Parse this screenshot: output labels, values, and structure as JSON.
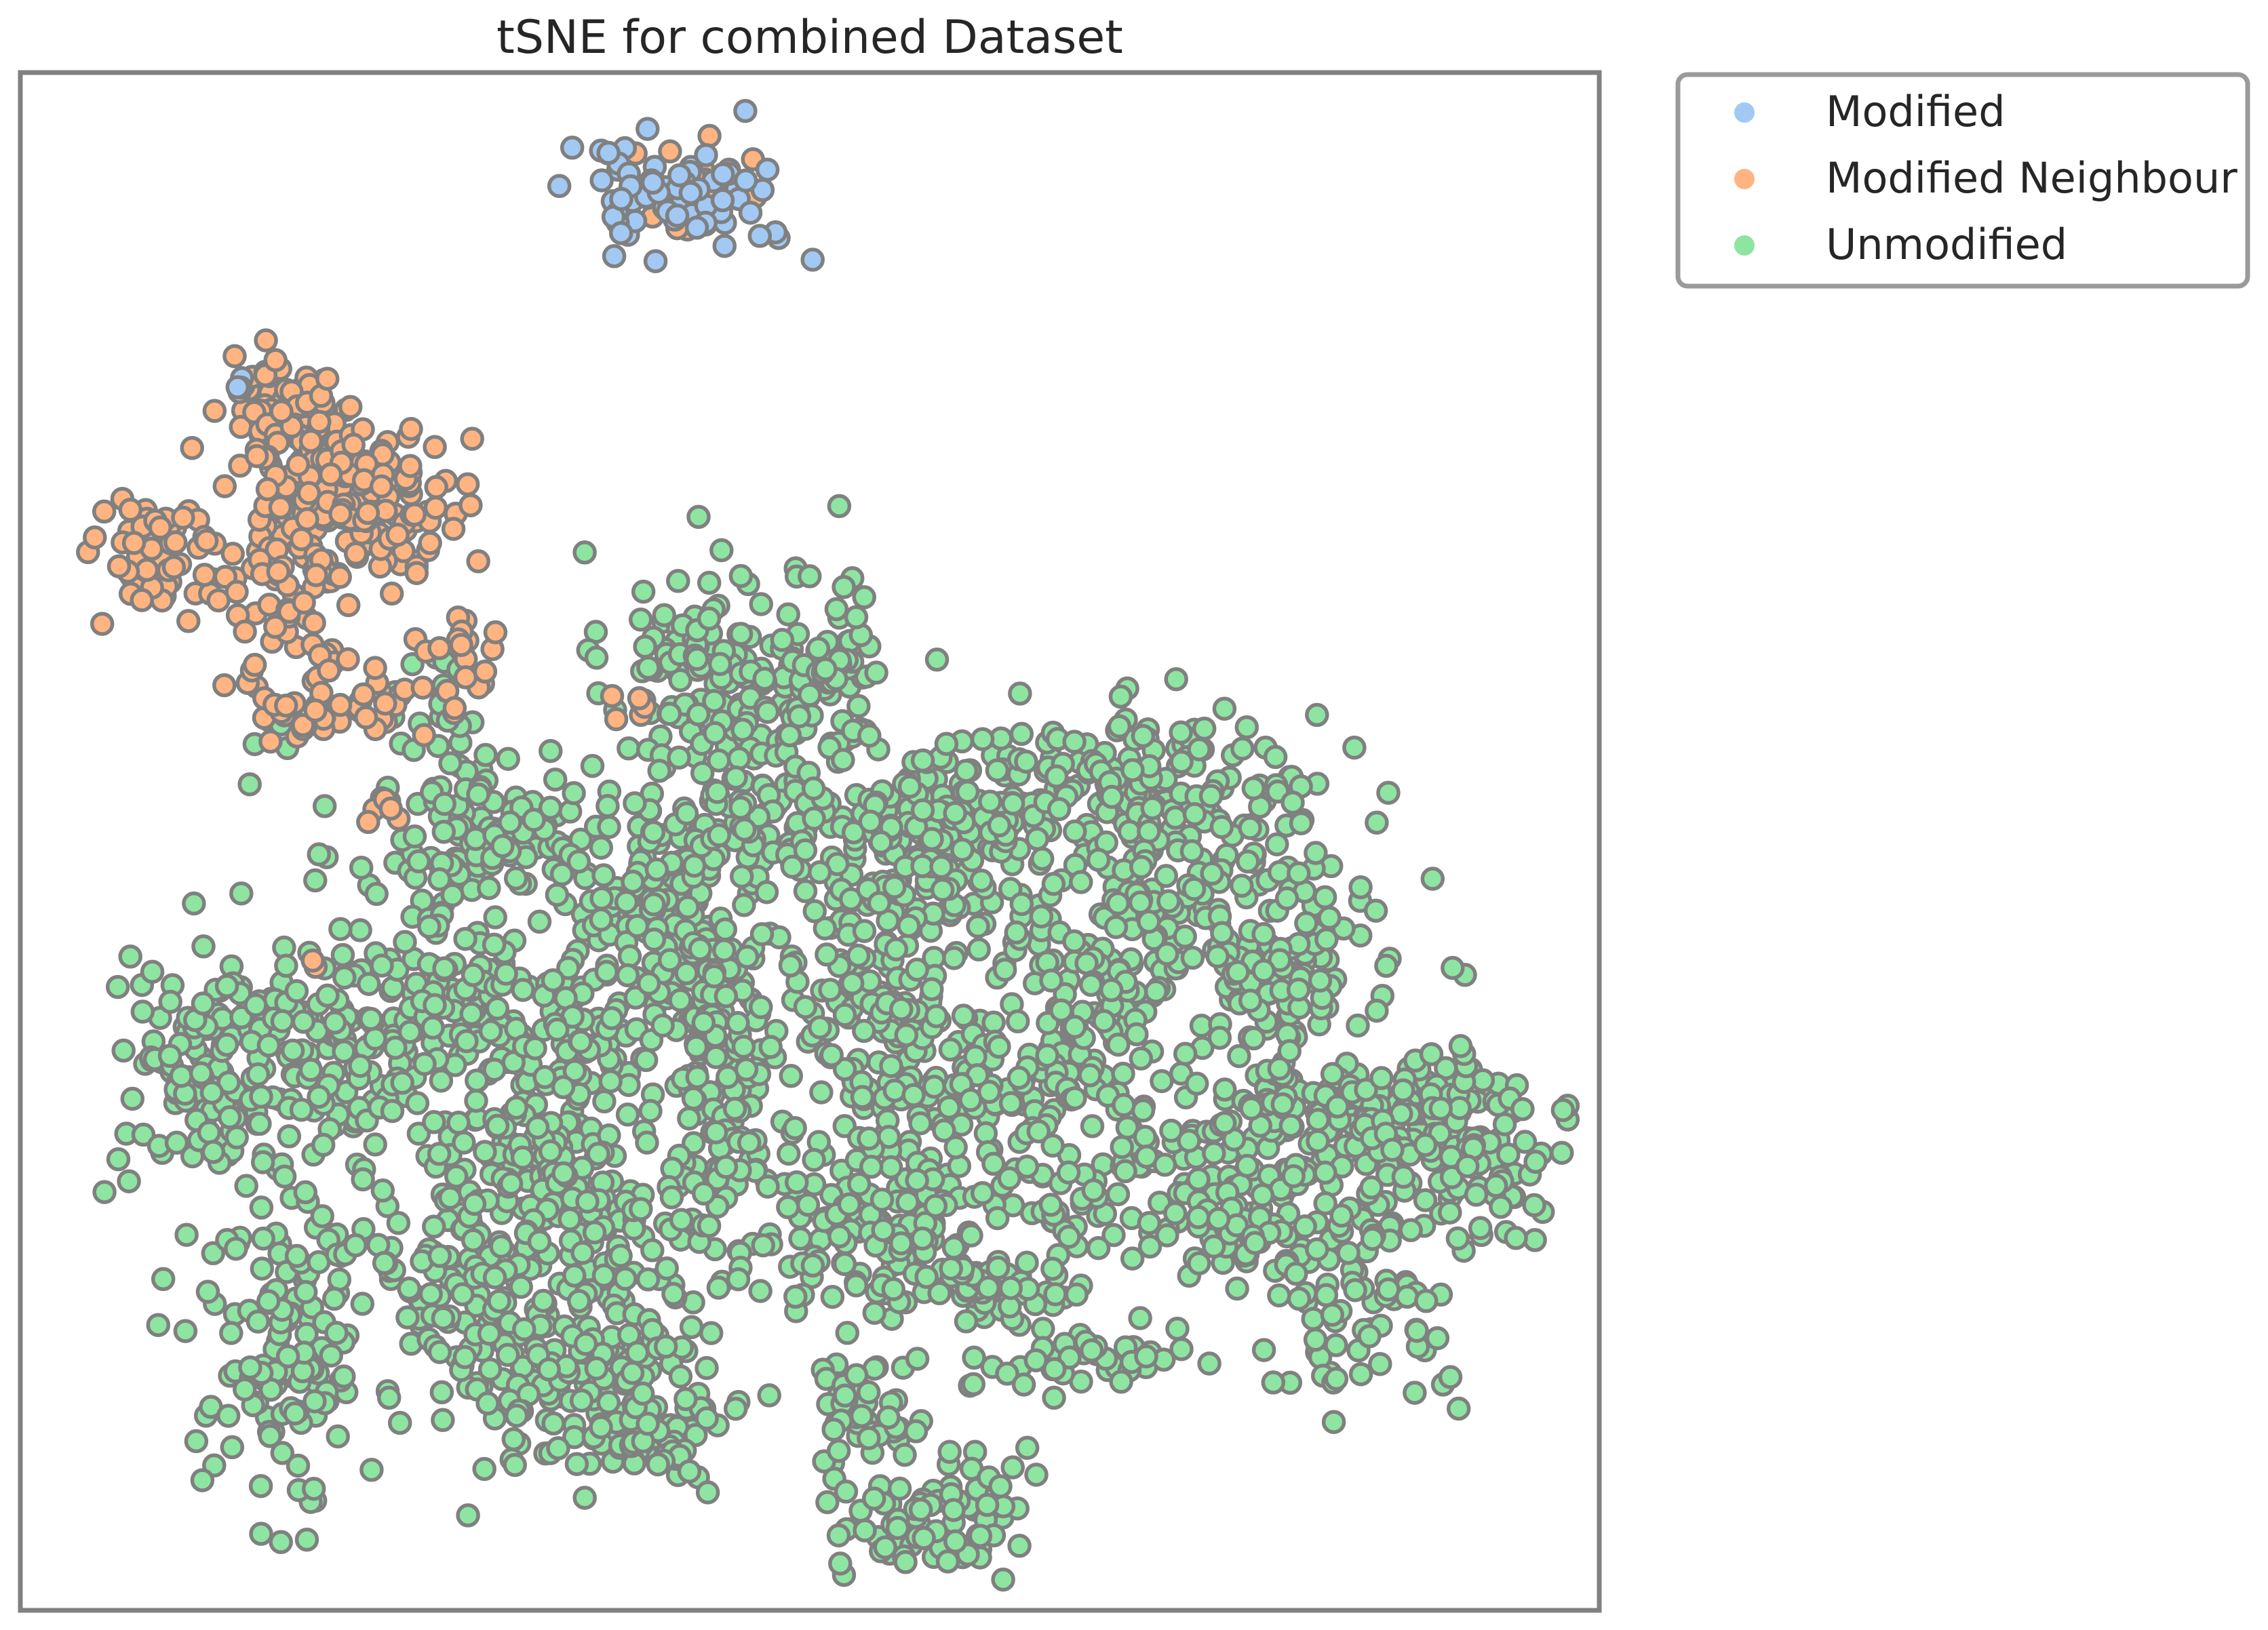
{
  "chart_data": {
    "type": "scatter",
    "title": "tSNE for combined Dataset",
    "xlabel": "",
    "ylabel": "",
    "x_ticks_visible": false,
    "y_ticks_visible": false,
    "grid": false,
    "xlim": [
      0,
      1
    ],
    "ylim": [
      0,
      1
    ],
    "legend_position": "outside-top-right",
    "marker_edge_color": "#808080",
    "series": [
      {
        "name": "Modified",
        "color": "#a1c9f4",
        "clusters": [
          {
            "cx": 0.42,
            "cy": 0.92,
            "sx": 0.035,
            "sy": 0.02,
            "n": 70
          },
          {
            "cx": 0.135,
            "cy": 0.795,
            "sx": 0.006,
            "sy": 0.004,
            "n": 3
          }
        ]
      },
      {
        "name": "Modified Neighbour",
        "color": "#ffb482",
        "clusters": [
          {
            "cx": 0.42,
            "cy": 0.925,
            "sx": 0.02,
            "sy": 0.015,
            "n": 25
          },
          {
            "cx": 0.16,
            "cy": 0.79,
            "sx": 0.016,
            "sy": 0.014,
            "n": 45
          },
          {
            "cx": 0.18,
            "cy": 0.73,
            "sx": 0.025,
            "sy": 0.03,
            "n": 120
          },
          {
            "cx": 0.23,
            "cy": 0.72,
            "sx": 0.025,
            "sy": 0.025,
            "n": 100
          },
          {
            "cx": 0.09,
            "cy": 0.69,
            "sx": 0.025,
            "sy": 0.018,
            "n": 60
          },
          {
            "cx": 0.175,
            "cy": 0.65,
            "sx": 0.016,
            "sy": 0.02,
            "n": 35
          },
          {
            "cx": 0.2,
            "cy": 0.59,
            "sx": 0.04,
            "sy": 0.012,
            "n": 50
          },
          {
            "cx": 0.27,
            "cy": 0.625,
            "sx": 0.015,
            "sy": 0.018,
            "n": 20
          },
          {
            "cx": 0.39,
            "cy": 0.59,
            "sx": 0.012,
            "sy": 0.01,
            "n": 6
          },
          {
            "cx": 0.23,
            "cy": 0.52,
            "sx": 0.012,
            "sy": 0.01,
            "n": 5
          },
          {
            "cx": 0.185,
            "cy": 0.42,
            "sx": 0.005,
            "sy": 0.005,
            "n": 2
          }
        ]
      },
      {
        "name": "Unmodified",
        "color": "#8de5a1",
        "clusters": [
          {
            "cx": 0.43,
            "cy": 0.61,
            "sx": 0.03,
            "sy": 0.04,
            "n": 120
          },
          {
            "cx": 0.5,
            "cy": 0.595,
            "sx": 0.025,
            "sy": 0.03,
            "n": 70
          },
          {
            "cx": 0.52,
            "cy": 0.61,
            "sx": 0.01,
            "sy": 0.04,
            "n": 30
          },
          {
            "cx": 0.27,
            "cy": 0.58,
            "sx": 0.015,
            "sy": 0.03,
            "n": 25
          },
          {
            "cx": 0.16,
            "cy": 0.56,
            "sx": 0.01,
            "sy": 0.01,
            "n": 5
          },
          {
            "cx": 0.29,
            "cy": 0.5,
            "sx": 0.04,
            "sy": 0.03,
            "n": 120
          },
          {
            "cx": 0.4,
            "cy": 0.465,
            "sx": 0.035,
            "sy": 0.03,
            "n": 100
          },
          {
            "cx": 0.46,
            "cy": 0.51,
            "sx": 0.03,
            "sy": 0.02,
            "n": 80
          },
          {
            "cx": 0.56,
            "cy": 0.48,
            "sx": 0.04,
            "sy": 0.03,
            "n": 130
          },
          {
            "cx": 0.6,
            "cy": 0.52,
            "sx": 0.03,
            "sy": 0.02,
            "n": 80
          },
          {
            "cx": 0.71,
            "cy": 0.535,
            "sx": 0.06,
            "sy": 0.025,
            "n": 180
          },
          {
            "cx": 0.74,
            "cy": 0.44,
            "sx": 0.06,
            "sy": 0.04,
            "n": 180
          },
          {
            "cx": 0.675,
            "cy": 0.39,
            "sx": 0.02,
            "sy": 0.03,
            "n": 60
          },
          {
            "cx": 0.8,
            "cy": 0.42,
            "sx": 0.02,
            "sy": 0.03,
            "n": 70
          },
          {
            "cx": 0.12,
            "cy": 0.35,
            "sx": 0.03,
            "sy": 0.035,
            "n": 120
          },
          {
            "cx": 0.21,
            "cy": 0.37,
            "sx": 0.04,
            "sy": 0.035,
            "n": 120
          },
          {
            "cx": 0.28,
            "cy": 0.38,
            "sx": 0.04,
            "sy": 0.035,
            "n": 120
          },
          {
            "cx": 0.35,
            "cy": 0.37,
            "sx": 0.03,
            "sy": 0.03,
            "n": 80
          },
          {
            "cx": 0.44,
            "cy": 0.39,
            "sx": 0.03,
            "sy": 0.05,
            "n": 120
          },
          {
            "cx": 0.55,
            "cy": 0.37,
            "sx": 0.03,
            "sy": 0.035,
            "n": 100
          },
          {
            "cx": 0.62,
            "cy": 0.34,
            "sx": 0.03,
            "sy": 0.02,
            "n": 60
          },
          {
            "cx": 0.32,
            "cy": 0.29,
            "sx": 0.025,
            "sy": 0.015,
            "n": 50
          },
          {
            "cx": 0.44,
            "cy": 0.3,
            "sx": 0.02,
            "sy": 0.02,
            "n": 40
          },
          {
            "cx": 0.54,
            "cy": 0.25,
            "sx": 0.05,
            "sy": 0.03,
            "n": 160
          },
          {
            "cx": 0.62,
            "cy": 0.21,
            "sx": 0.03,
            "sy": 0.012,
            "n": 50
          },
          {
            "cx": 0.36,
            "cy": 0.25,
            "sx": 0.035,
            "sy": 0.03,
            "n": 140
          },
          {
            "cx": 0.28,
            "cy": 0.22,
            "sx": 0.03,
            "sy": 0.04,
            "n": 100
          },
          {
            "cx": 0.17,
            "cy": 0.18,
            "sx": 0.025,
            "sy": 0.06,
            "n": 150
          },
          {
            "cx": 0.35,
            "cy": 0.15,
            "sx": 0.04,
            "sy": 0.03,
            "n": 140
          },
          {
            "cx": 0.41,
            "cy": 0.12,
            "sx": 0.02,
            "sy": 0.02,
            "n": 50
          },
          {
            "cx": 0.53,
            "cy": 0.13,
            "sx": 0.02,
            "sy": 0.02,
            "n": 50
          },
          {
            "cx": 0.58,
            "cy": 0.06,
            "sx": 0.03,
            "sy": 0.02,
            "n": 80
          },
          {
            "cx": 0.665,
            "cy": 0.16,
            "sx": 0.035,
            "sy": 0.01,
            "n": 40
          },
          {
            "cx": 0.72,
            "cy": 0.29,
            "sx": 0.06,
            "sy": 0.03,
            "n": 150
          },
          {
            "cx": 0.87,
            "cy": 0.33,
            "sx": 0.05,
            "sy": 0.015,
            "n": 120
          },
          {
            "cx": 0.85,
            "cy": 0.23,
            "sx": 0.04,
            "sy": 0.05,
            "n": 130
          },
          {
            "cx": 0.92,
            "cy": 0.29,
            "sx": 0.03,
            "sy": 0.02,
            "n": 60
          },
          {
            "cx": 0.77,
            "cy": 0.25,
            "sx": 0.03,
            "sy": 0.015,
            "n": 40
          }
        ]
      }
    ]
  }
}
